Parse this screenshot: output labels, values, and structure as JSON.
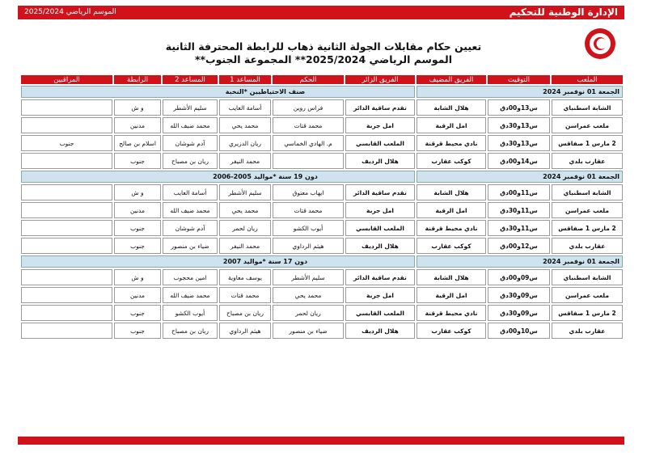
{
  "header": {
    "season": "الموسم الرياضي 2025/2024",
    "organization": "الإدارة الوطنية للتحكيم",
    "title": "تعيين حكام مقابلات الجولة الثانية ذهاب للرابطة المحترفة الثانية",
    "subtitle": "الموسم الرياضي 2025/2024** المجموعة الجنوب**"
  },
  "table": {
    "columns": [
      "الملعب",
      "التوقيت",
      "الفريق المضيف",
      "الفريق الزائر",
      "الحكم",
      "المساعد 1",
      "المساعد 2",
      "الرابطة",
      "المراقبين"
    ],
    "sections": [
      {
        "date": "الجمعة 01 نوفمبر 2024",
        "category": "صنف الاحتياطيين *النخبة",
        "rows": [
          [
            "الشابة اسطنباي",
            "س13و00دق",
            "هلال الشابة",
            "تقدم ساقية الدائر",
            "فراس روين",
            "أسامة العايب",
            "سليم الأشطر",
            "و ش",
            null
          ],
          [
            "ملعب عمراسن",
            "س13و30دق",
            "امل الرقبة",
            "امل جربة",
            "محمد قتات",
            "محمد يحي",
            "محمد ضيف الله",
            "مدنين",
            null
          ],
          [
            "2 مارس 1 صفاقس",
            "س13و30دق",
            "نادي محيط قرقنة",
            "الملعب القابسي",
            "م. الهادي الخماسي",
            "ريان الدزيري",
            "آدم شوشان",
            "اسلام بن صالح",
            "جنوب"
          ],
          [
            "عقارب بلدي",
            "س14و00دق",
            "كوكب عقارب",
            "هلال الرديف",
            null,
            "محمد النيفر",
            "ريان بن مصباح",
            "جنوب",
            null
          ]
        ]
      },
      {
        "date": "الجمعة 01 نوفمبر 2024",
        "category": "دون 19 سنة *مواليد 2005-2006",
        "rows": [
          [
            "الشابة اسطنباي",
            "س11و00دق",
            "هلال الشابة",
            "تقدم ساقية الدائر",
            "ايهاب معتوق",
            "سليم الأشطر",
            "أسامة العايب",
            "و ش",
            null
          ],
          [
            "ملعب عمراسن",
            "س11و30دق",
            "امل الرقبة",
            "امل جربة",
            "محمد قتات",
            "محمد يحي",
            "محمد ضيف الله",
            "مدنين",
            null
          ],
          [
            "2 مارس 1 صفاقس",
            "س11و30دق",
            "نادي محيط قرقنة",
            "الملعب القابسي",
            "أيوب الكشو",
            "ريان لحمر",
            "آدم شوشان",
            "جنوب",
            null
          ],
          [
            "عقارب بلدي",
            "س12و00دق",
            "كوكب عقارب",
            "هلال الرديف",
            "هيثم الرداوي",
            "محمد النيفر",
            "ضياء بن منصور",
            "جنوب",
            null
          ]
        ]
      },
      {
        "date": "الجمعة 01 نوفمبر 2024",
        "category": "دون 17 سنة *مواليد 2007",
        "rows": [
          [
            "الشابة اسطنباي",
            "س09و00دق",
            "هلال الشابة",
            "تقدم ساقية الدائر",
            "سليم الأشطر",
            "يوسف معاوية",
            "امين محجوب",
            "و ش",
            null
          ],
          [
            "ملعب عمراسن",
            "س09و30دق",
            "امل الرقبة",
            "امل جربة",
            "محمد يحي",
            "محمد قتات",
            "محمد ضيف الله",
            "مدنين",
            null
          ],
          [
            "2 مارس 1 صفاقس",
            "س09و30دق",
            "نادي محيط قرقنة",
            "الملعب القابسي",
            "ريان لحمر",
            "ريان بن مصباح",
            "أيوب الكشو",
            "جنوب",
            null
          ],
          [
            "عقارب بلدي",
            "س10و00دق",
            "كوكب عقارب",
            "هلال الرديف",
            "ضياء بن منصور",
            "هيثم الرداوي",
            "ريان بن مصباح",
            "جنوب",
            null
          ]
        ]
      }
    ]
  }
}
